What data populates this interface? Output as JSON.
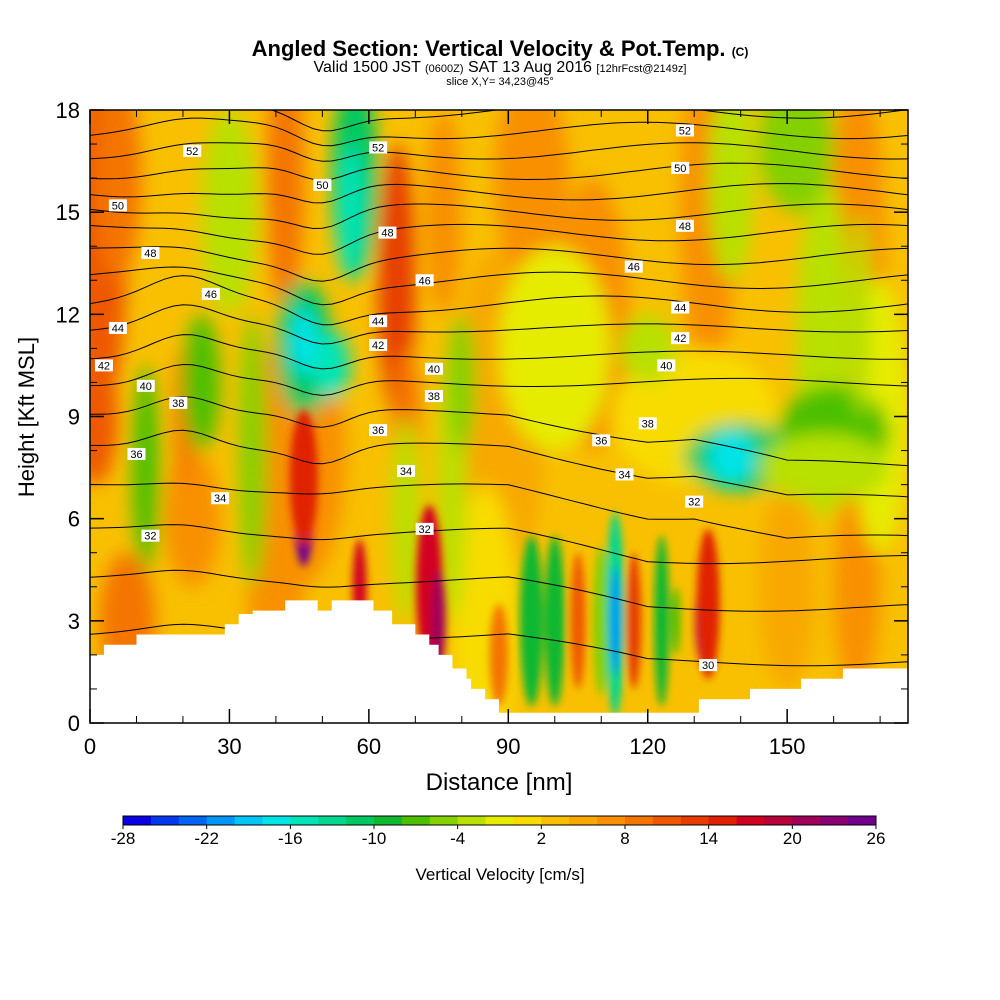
{
  "header": {
    "title": "Angled Section: Vertical Velocity & Pot.Temp.",
    "title_mark": "(C)",
    "valid_a": "Valid 1500 JST",
    "valid_b": "(0600Z)",
    "valid_c": "SAT 13 Aug 2016",
    "valid_d": "[12hrFcst@2149z]",
    "slice": "slice X,Y= 34,23@45°"
  },
  "chart_data": {
    "type": "heatmap",
    "title": "Angled Section: Vertical Velocity & Pot.Temp.",
    "xlabel": "Distance [nm]",
    "ylabel": "Height [Kft MSL]",
    "xlim": [
      0,
      176
    ],
    "ylim": [
      0,
      18
    ],
    "x_ticks": [
      0,
      30,
      60,
      90,
      120,
      150
    ],
    "y_ticks": [
      0,
      3,
      6,
      9,
      12,
      15,
      18
    ],
    "colorbar": {
      "label": "Vertical Velocity [cm/s]",
      "tick_labels": [
        "-28",
        "-22",
        "-16",
        "-10",
        "-4",
        "2",
        "8",
        "14",
        "20",
        "26"
      ],
      "range": [
        -28,
        26
      ],
      "step": 2,
      "colors": [
        "#0a00e6",
        "#0038f0",
        "#0064f5",
        "#0096f8",
        "#00c6f8",
        "#00e4e8",
        "#00e4b8",
        "#00d890",
        "#00c860",
        "#10b830",
        "#4cc000",
        "#84d000",
        "#b8e000",
        "#e6ec00",
        "#f8dc00",
        "#f8c000",
        "#f8a800",
        "#f89000",
        "#f47400",
        "#ee5800",
        "#e63c00",
        "#e02000",
        "#d20020",
        "#b8003c",
        "#a0005a",
        "#880074",
        "#70008c"
      ]
    },
    "series": [
      {
        "name": "theta_contours",
        "values": [
          30,
          32,
          34,
          36,
          38,
          40,
          42,
          44,
          46,
          48,
          50,
          52
        ]
      }
    ],
    "contour_labels": [
      {
        "label": "52",
        "x": 22,
        "y": 16.8
      },
      {
        "label": "52",
        "x": 62,
        "y": 16.9
      },
      {
        "label": "52",
        "x": 128,
        "y": 17.4
      },
      {
        "label": "50",
        "x": 6,
        "y": 15.2
      },
      {
        "label": "50",
        "x": 50,
        "y": 15.8
      },
      {
        "label": "50",
        "x": 127,
        "y": 16.3
      },
      {
        "label": "48",
        "x": 13,
        "y": 13.8
      },
      {
        "label": "48",
        "x": 64,
        "y": 14.4
      },
      {
        "label": "48",
        "x": 128,
        "y": 14.6
      },
      {
        "label": "46",
        "x": 26,
        "y": 12.6
      },
      {
        "label": "46",
        "x": 72,
        "y": 13.0
      },
      {
        "label": "46",
        "x": 117,
        "y": 13.4
      },
      {
        "label": "44",
        "x": 6,
        "y": 11.6
      },
      {
        "label": "44",
        "x": 62,
        "y": 11.8
      },
      {
        "label": "44",
        "x": 127,
        "y": 12.2
      },
      {
        "label": "42",
        "x": 3,
        "y": 10.5
      },
      {
        "label": "42",
        "x": 62,
        "y": 11.1
      },
      {
        "label": "42",
        "x": 127,
        "y": 11.3
      },
      {
        "label": "40",
        "x": 12,
        "y": 9.9
      },
      {
        "label": "40",
        "x": 74,
        "y": 10.4
      },
      {
        "label": "40",
        "x": 124,
        "y": 10.5
      },
      {
        "label": "38",
        "x": 19,
        "y": 9.4
      },
      {
        "label": "38",
        "x": 74,
        "y": 9.6
      },
      {
        "label": "38",
        "x": 120,
        "y": 8.8
      },
      {
        "label": "36",
        "x": 10,
        "y": 7.9
      },
      {
        "label": "36",
        "x": 62,
        "y": 8.6
      },
      {
        "label": "36",
        "x": 110,
        "y": 8.3
      },
      {
        "label": "34",
        "x": 28,
        "y": 6.6
      },
      {
        "label": "34",
        "x": 68,
        "y": 7.4
      },
      {
        "label": "34",
        "x": 115,
        "y": 7.3
      },
      {
        "label": "32",
        "x": 13,
        "y": 5.5
      },
      {
        "label": "32",
        "x": 72,
        "y": 5.7
      },
      {
        "label": "32",
        "x": 130,
        "y": 6.5
      },
      {
        "label": "30",
        "x": 133,
        "y": 1.7
      }
    ],
    "terrain_masked": true
  }
}
